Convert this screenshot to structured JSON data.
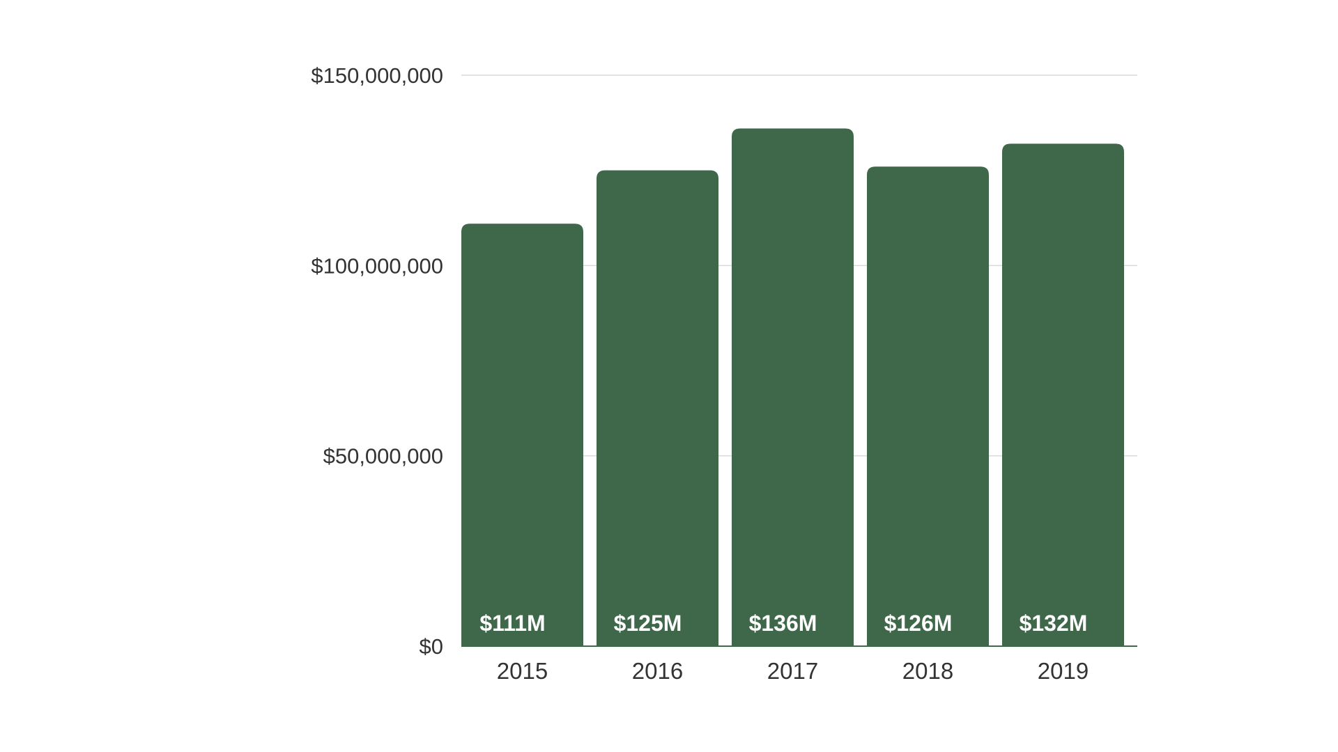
{
  "chart_data": {
    "type": "bar",
    "categories": [
      "2015",
      "2016",
      "2017",
      "2018",
      "2019"
    ],
    "values": [
      111000000,
      125000000,
      136000000,
      126000000,
      132000000
    ],
    "data_labels": [
      "$111M",
      "$125M",
      "$136M",
      "$126M",
      "$132M"
    ],
    "y_ticks": [
      0,
      50000000,
      100000000,
      150000000
    ],
    "y_tick_labels": [
      "$0",
      "$50,000,000",
      "$100,000,000",
      "$150,000,000"
    ],
    "ylim": [
      0,
      150000000
    ],
    "title": "",
    "xlabel": "",
    "ylabel": "",
    "grid": true,
    "legend": "none",
    "colors": {
      "bar": "#3e6849",
      "label": "#ffffff",
      "grid": "#d9d9d9",
      "text": "#333333"
    }
  }
}
